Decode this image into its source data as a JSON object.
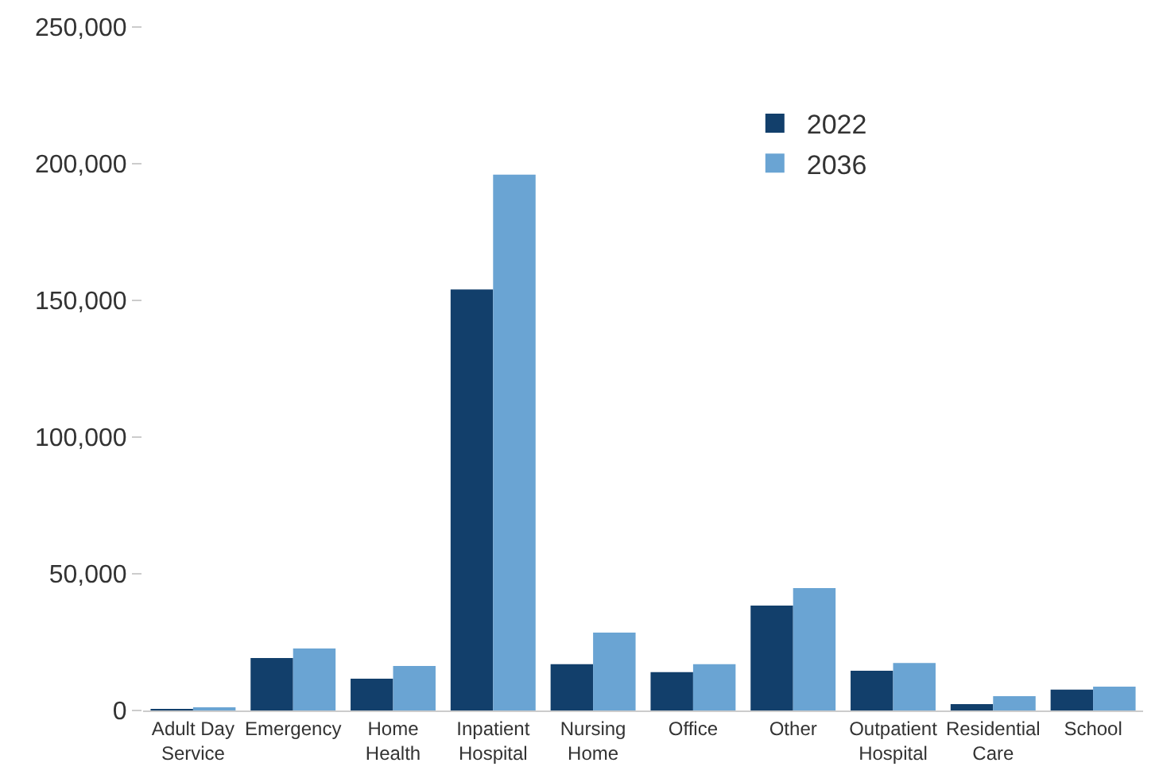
{
  "chart_data": {
    "type": "bar",
    "categories": [
      "Adult Day\nService",
      "Emergency",
      "Home\nHealth",
      "Inpatient\nHospital",
      "Nursing\nHome",
      "Office",
      "Other",
      "Outpatient\nHospital",
      "Residential\nCare",
      "School"
    ],
    "series": [
      {
        "name": "2022",
        "color": "#123f6b",
        "values": [
          500,
          19200,
          11600,
          154000,
          16900,
          14000,
          38400,
          14500,
          2300,
          7600
        ]
      },
      {
        "name": "2036",
        "color": "#6aa4d3",
        "values": [
          700,
          22700,
          16300,
          196000,
          28500,
          16900,
          44800,
          17400,
          5200,
          8700
        ]
      }
    ],
    "ylim": [
      0,
      250000
    ],
    "yticks": [
      {
        "value": 0,
        "label": "0"
      },
      {
        "value": 50000,
        "label": "50,000"
      },
      {
        "value": 100000,
        "label": "100,000"
      },
      {
        "value": 150000,
        "label": "150,000"
      },
      {
        "value": 200000,
        "label": "200,000"
      },
      {
        "value": 250000,
        "label": "250,000"
      }
    ],
    "legend": "top right"
  }
}
